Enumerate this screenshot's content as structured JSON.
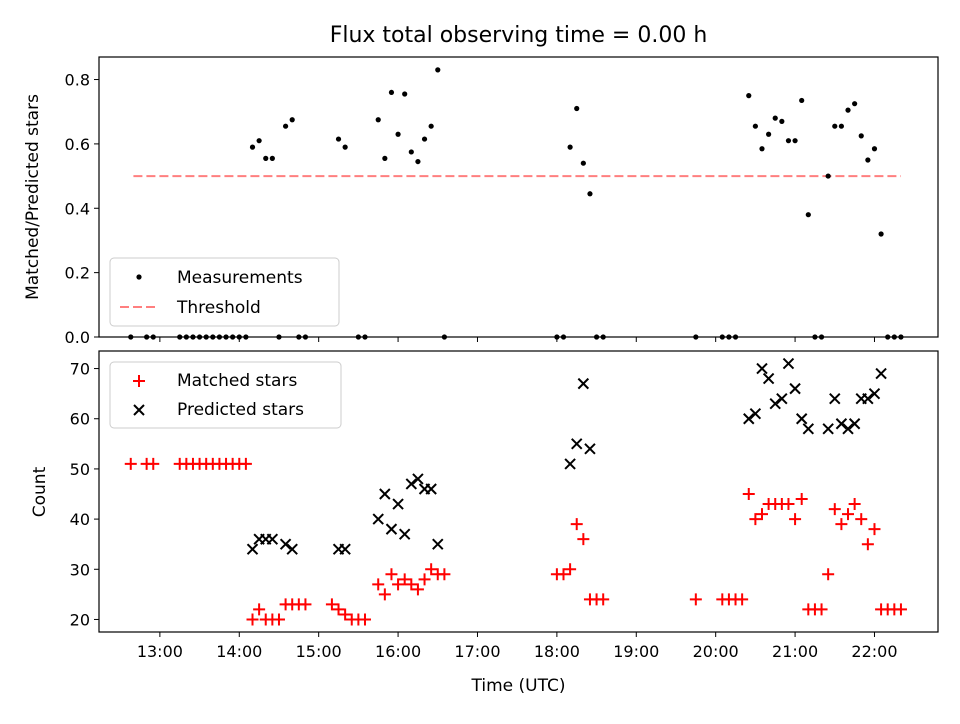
{
  "title": "Flux total observing time = 0.00 h",
  "colors": {
    "measurement": "#000000",
    "threshold": "#ff7f7f",
    "matched": "#ff0000",
    "predicted": "#000000"
  },
  "chart_data": [
    {
      "type": "scatter",
      "ylabel": "Matched/Predicted stars",
      "xlim": [
        "12:14",
        "22:48"
      ],
      "ylim": [
        0,
        0.87
      ],
      "yticks": [
        "0.0",
        "0.2",
        "0.4",
        "0.6",
        "0.8"
      ],
      "legend": {
        "placement": "lower-left",
        "entries": [
          "Measurements",
          "Threshold"
        ]
      },
      "threshold": {
        "name": "Threshold",
        "value": 0.5,
        "x_start": "12:40",
        "x_end": "22:20"
      },
      "series": [
        {
          "name": "Measurements",
          "points": [
            [
              "12:38",
              0
            ],
            [
              "12:50",
              0
            ],
            [
              "12:55",
              0
            ],
            [
              "13:15",
              0
            ],
            [
              "13:20",
              0
            ],
            [
              "13:25",
              0
            ],
            [
              "13:30",
              0
            ],
            [
              "13:35",
              0
            ],
            [
              "13:40",
              0
            ],
            [
              "13:45",
              0
            ],
            [
              "13:50",
              0
            ],
            [
              "13:55",
              0
            ],
            [
              "14:00",
              0
            ],
            [
              "14:05",
              0
            ],
            [
              "14:10",
              0.59
            ],
            [
              "14:15",
              0.61
            ],
            [
              "14:20",
              0.555
            ],
            [
              "14:25",
              0.555
            ],
            [
              "14:30",
              0
            ],
            [
              "14:35",
              0.655
            ],
            [
              "14:40",
              0.675
            ],
            [
              "14:45",
              0
            ],
            [
              "14:50",
              0
            ],
            [
              "15:15",
              0.615
            ],
            [
              "15:20",
              0.59
            ],
            [
              "15:30",
              0
            ],
            [
              "15:35",
              0
            ],
            [
              "15:45",
              0.675
            ],
            [
              "15:50",
              0.555
            ],
            [
              "15:55",
              0.76
            ],
            [
              "16:00",
              0.63
            ],
            [
              "16:05",
              0.755
            ],
            [
              "16:10",
              0.575
            ],
            [
              "16:15",
              0.545
            ],
            [
              "16:20",
              0.615
            ],
            [
              "16:25",
              0.655
            ],
            [
              "16:30",
              0.83
            ],
            [
              "16:35",
              0
            ],
            [
              "18:00",
              0
            ],
            [
              "18:05",
              0
            ],
            [
              "18:10",
              0.59
            ],
            [
              "18:15",
              0.71
            ],
            [
              "18:20",
              0.54
            ],
            [
              "18:25",
              0.445
            ],
            [
              "18:30",
              0
            ],
            [
              "18:35",
              0
            ],
            [
              "19:45",
              0
            ],
            [
              "20:05",
              0
            ],
            [
              "20:10",
              0
            ],
            [
              "20:15",
              0
            ],
            [
              "20:25",
              0.75
            ],
            [
              "20:30",
              0.655
            ],
            [
              "20:35",
              0.585
            ],
            [
              "20:40",
              0.63
            ],
            [
              "20:45",
              0.68
            ],
            [
              "20:50",
              0.67
            ],
            [
              "20:55",
              0.61
            ],
            [
              "21:00",
              0.61
            ],
            [
              "21:05",
              0.735
            ],
            [
              "21:10",
              0.38
            ],
            [
              "21:15",
              0
            ],
            [
              "21:20",
              0
            ],
            [
              "21:25",
              0.5
            ],
            [
              "21:30",
              0.655
            ],
            [
              "21:35",
              0.655
            ],
            [
              "21:40",
              0.705
            ],
            [
              "21:45",
              0.725
            ],
            [
              "21:50",
              0.625
            ],
            [
              "21:55",
              0.55
            ],
            [
              "22:00",
              0.585
            ],
            [
              "22:05",
              0.32
            ],
            [
              "22:10",
              0
            ],
            [
              "22:15",
              0
            ],
            [
              "22:20",
              0
            ]
          ]
        }
      ]
    },
    {
      "type": "scatter",
      "xlabel": "Time (UTC)",
      "ylabel": "Count",
      "xlim": [
        "12:14",
        "22:48"
      ],
      "ylim": [
        17.5,
        73.5
      ],
      "xticks": [
        "13:00",
        "14:00",
        "15:00",
        "16:00",
        "17:00",
        "18:00",
        "19:00",
        "20:00",
        "21:00",
        "22:00"
      ],
      "yticks": [
        "20",
        "30",
        "40",
        "50",
        "60",
        "70"
      ],
      "legend": {
        "placement": "upper-left",
        "entries": [
          "Matched stars",
          "Predicted stars"
        ]
      },
      "series": [
        {
          "name": "Matched stars",
          "points": [
            [
              "12:38",
              51
            ],
            [
              "12:50",
              51
            ],
            [
              "12:55",
              51
            ],
            [
              "13:15",
              51
            ],
            [
              "13:20",
              51
            ],
            [
              "13:25",
              51
            ],
            [
              "13:30",
              51
            ],
            [
              "13:35",
              51
            ],
            [
              "13:40",
              51
            ],
            [
              "13:45",
              51
            ],
            [
              "13:50",
              51
            ],
            [
              "13:55",
              51
            ],
            [
              "14:00",
              51
            ],
            [
              "14:05",
              51
            ],
            [
              "14:10",
              20
            ],
            [
              "14:15",
              22
            ],
            [
              "14:20",
              20
            ],
            [
              "14:25",
              20
            ],
            [
              "14:30",
              20
            ],
            [
              "14:35",
              23
            ],
            [
              "14:40",
              23
            ],
            [
              "14:45",
              23
            ],
            [
              "14:50",
              23
            ],
            [
              "15:10",
              23
            ],
            [
              "15:15",
              22
            ],
            [
              "15:20",
              21
            ],
            [
              "15:25",
              20
            ],
            [
              "15:30",
              20
            ],
            [
              "15:35",
              20
            ],
            [
              "15:45",
              27
            ],
            [
              "15:50",
              25
            ],
            [
              "15:55",
              29
            ],
            [
              "16:00",
              27
            ],
            [
              "16:05",
              28
            ],
            [
              "16:10",
              27
            ],
            [
              "16:15",
              26
            ],
            [
              "16:20",
              28
            ],
            [
              "16:25",
              30
            ],
            [
              "16:30",
              29
            ],
            [
              "16:35",
              29
            ],
            [
              "18:00",
              29
            ],
            [
              "18:05",
              29
            ],
            [
              "18:10",
              30
            ],
            [
              "18:15",
              39
            ],
            [
              "18:20",
              36
            ],
            [
              "18:25",
              24
            ],
            [
              "18:30",
              24
            ],
            [
              "18:35",
              24
            ],
            [
              "19:45",
              24
            ],
            [
              "20:05",
              24
            ],
            [
              "20:10",
              24
            ],
            [
              "20:15",
              24
            ],
            [
              "20:20",
              24
            ],
            [
              "20:25",
              45
            ],
            [
              "20:30",
              40
            ],
            [
              "20:35",
              41
            ],
            [
              "20:40",
              43
            ],
            [
              "20:45",
              43
            ],
            [
              "20:50",
              43
            ],
            [
              "20:55",
              43
            ],
            [
              "21:00",
              40
            ],
            [
              "21:05",
              44
            ],
            [
              "21:10",
              22
            ],
            [
              "21:15",
              22
            ],
            [
              "21:20",
              22
            ],
            [
              "21:25",
              29
            ],
            [
              "21:30",
              42
            ],
            [
              "21:35",
              39
            ],
            [
              "21:40",
              41
            ],
            [
              "21:45",
              43
            ],
            [
              "21:50",
              40
            ],
            [
              "21:55",
              35
            ],
            [
              "22:00",
              38
            ],
            [
              "22:05",
              22
            ],
            [
              "22:10",
              22
            ],
            [
              "22:15",
              22
            ],
            [
              "22:20",
              22
            ]
          ]
        },
        {
          "name": "Predicted stars",
          "points": [
            [
              "14:10",
              34
            ],
            [
              "14:15",
              36
            ],
            [
              "14:20",
              36
            ],
            [
              "14:25",
              36
            ],
            [
              "14:35",
              35
            ],
            [
              "14:40",
              34
            ],
            [
              "15:15",
              34
            ],
            [
              "15:20",
              34
            ],
            [
              "15:45",
              40
            ],
            [
              "15:50",
              45
            ],
            [
              "15:55",
              38
            ],
            [
              "16:00",
              43
            ],
            [
              "16:05",
              37
            ],
            [
              "16:10",
              47
            ],
            [
              "16:15",
              48
            ],
            [
              "16:20",
              46
            ],
            [
              "16:25",
              46
            ],
            [
              "16:30",
              35
            ],
            [
              "18:10",
              51
            ],
            [
              "18:15",
              55
            ],
            [
              "18:20",
              67
            ],
            [
              "18:25",
              54
            ],
            [
              "20:25",
              60
            ],
            [
              "20:30",
              61
            ],
            [
              "20:35",
              70
            ],
            [
              "20:40",
              68
            ],
            [
              "20:45",
              63
            ],
            [
              "20:50",
              64
            ],
            [
              "20:55",
              71
            ],
            [
              "21:00",
              66
            ],
            [
              "21:05",
              60
            ],
            [
              "21:10",
              58
            ],
            [
              "21:25",
              58
            ],
            [
              "21:30",
              64
            ],
            [
              "21:35",
              59
            ],
            [
              "21:40",
              58
            ],
            [
              "21:45",
              59
            ],
            [
              "21:50",
              64
            ],
            [
              "21:55",
              64
            ],
            [
              "22:00",
              65
            ],
            [
              "22:05",
              69
            ]
          ]
        }
      ]
    }
  ]
}
